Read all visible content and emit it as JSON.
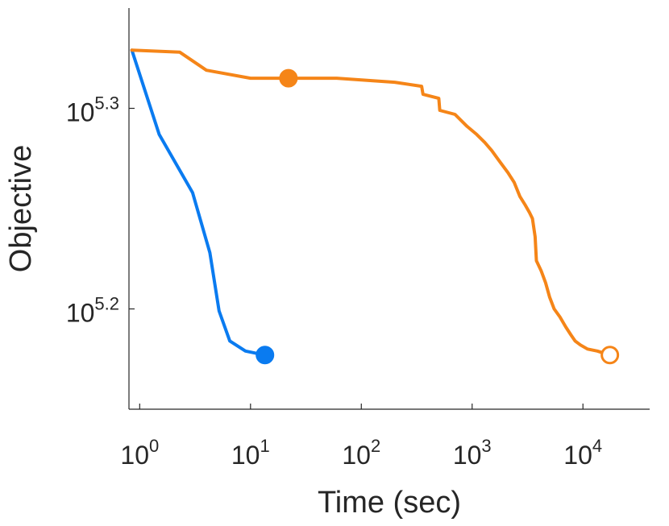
{
  "chart_data": {
    "type": "line",
    "xlabel": "Time (sec)",
    "ylabel": "Objective",
    "xscale": "log",
    "yscale": "log",
    "xlim": [
      0.8,
      40000
    ],
    "ylim": [
      5.15,
      5.35
    ],
    "x_ticks": [
      {
        "value": 1,
        "base": "10",
        "exp": "0"
      },
      {
        "value": 10,
        "base": "10",
        "exp": "1"
      },
      {
        "value": 100,
        "base": "10",
        "exp": "2"
      },
      {
        "value": 1000,
        "base": "10",
        "exp": "3"
      },
      {
        "value": 10000,
        "base": "10",
        "exp": "4"
      }
    ],
    "y_ticks": [
      {
        "value": 5.2,
        "base": "10",
        "exp": "5.2"
      },
      {
        "value": 5.3,
        "base": "10",
        "exp": "5.3"
      }
    ],
    "grid": false,
    "series": [
      {
        "color": "#0a7bf0",
        "x": [
          0.85,
          1.5,
          3.0,
          4.3,
          5.2,
          6.5,
          9.0,
          13.5
        ],
        "y": [
          5.329,
          5.287,
          5.258,
          5.228,
          5.199,
          5.184,
          5.179,
          5.177
        ],
        "marker": {
          "x": 13.5,
          "y": 5.177,
          "filled": true
        }
      },
      {
        "color": "#f58518",
        "x": [
          0.85,
          2.3,
          4.0,
          10,
          22,
          60,
          200,
          350,
          360,
          500,
          510,
          700,
          900,
          1100,
          1300,
          1500,
          1800,
          2100,
          2400,
          2700,
          3000,
          3300,
          3500,
          3700,
          3800,
          4200,
          4600,
          5000,
          5500,
          6200,
          7000,
          7800,
          8500,
          9500,
          11000,
          13500,
          17500
        ],
        "y": [
          5.329,
          5.328,
          5.319,
          5.315,
          5.315,
          5.315,
          5.313,
          5.311,
          5.307,
          5.305,
          5.299,
          5.297,
          5.291,
          5.287,
          5.283,
          5.279,
          5.273,
          5.268,
          5.263,
          5.256,
          5.252,
          5.248,
          5.245,
          5.236,
          5.224,
          5.219,
          5.213,
          5.206,
          5.2,
          5.196,
          5.191,
          5.187,
          5.184,
          5.182,
          5.18,
          5.179,
          5.177
        ],
        "marker": {
          "x": 22,
          "y": 5.315,
          "filled": true
        },
        "end_marker": {
          "x": 17500,
          "y": 5.177,
          "filled": false
        }
      }
    ]
  }
}
